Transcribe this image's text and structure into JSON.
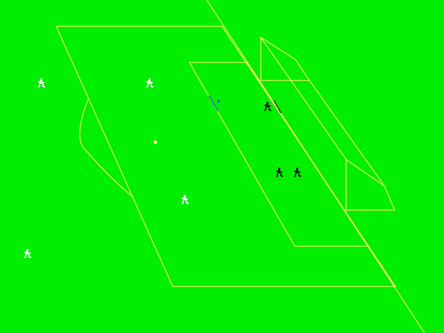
{
  "colors": {
    "grass": "#00ee00",
    "pitch_lines": "#e8f060",
    "team_white": "#ffffff",
    "team_black": "#1a1a1a",
    "ball": "#fff8a0",
    "pass_marker": "#1565c0"
  },
  "players": [
    {
      "team": "white",
      "icon": "white-player-icon"
    },
    {
      "team": "white",
      "icon": "white-player-icon"
    },
    {
      "team": "white",
      "icon": "white-player-icon"
    },
    {
      "team": "white",
      "icon": "white-player-icon"
    },
    {
      "team": "black",
      "icon": "black-player-icon"
    },
    {
      "team": "black",
      "icon": "black-player-icon"
    },
    {
      "team": "black",
      "icon": "black-player-icon"
    }
  ],
  "ball": {
    "icon": "ball-icon"
  },
  "pass_marker": {
    "icon": "pass-direction-icon"
  }
}
